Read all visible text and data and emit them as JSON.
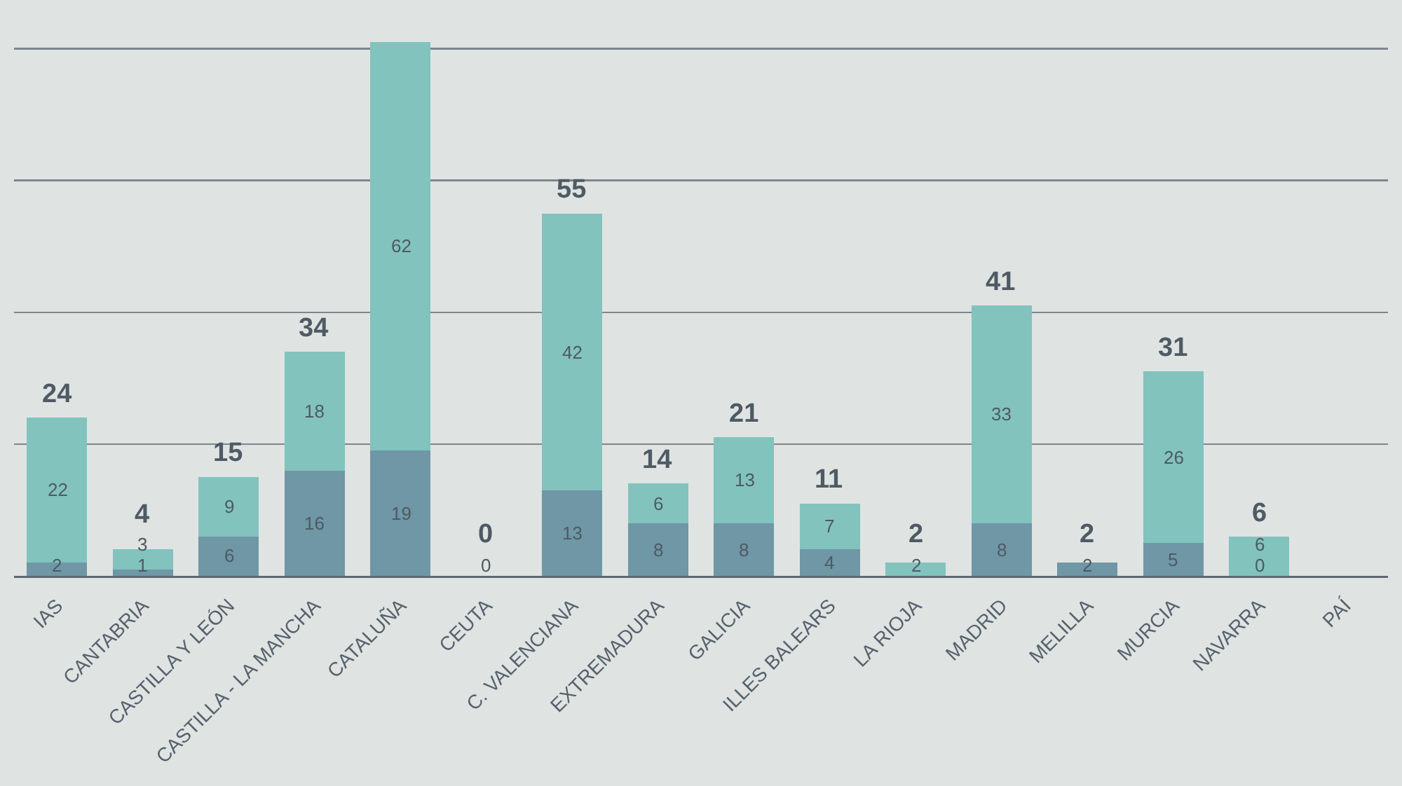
{
  "chart_data": {
    "type": "bar",
    "stacked": true,
    "categories": [
      "IAS",
      "CANTABRIA",
      "CASTILLA Y LEÓN",
      "CASTILLA - LA MANCHA",
      "CATALUÑA",
      "CEUTA",
      "C. VALENCIANA",
      "EXTREMADURA",
      "GALICIA",
      "ILLES BALEARS",
      "LA RIOJA",
      "MADRID",
      "MELILLA",
      "MURCIA",
      "NAVARRA",
      "PAÍ"
    ],
    "series": [
      {
        "color": "#6f97a6",
        "values": [
          2,
          1,
          6,
          16,
          19,
          0,
          13,
          8,
          8,
          4,
          0,
          8,
          2,
          5,
          0,
          null
        ],
        "value_labels": [
          "2",
          "1",
          "6",
          "16",
          "19",
          "0",
          "13",
          "8",
          "8",
          "4",
          null,
          "8",
          "2",
          "5",
          "0",
          null
        ]
      },
      {
        "color": "#82c3bd",
        "values": [
          22,
          3,
          9,
          18,
          62,
          0,
          42,
          6,
          13,
          7,
          2,
          33,
          0,
          26,
          6,
          null
        ],
        "value_labels": [
          "22",
          "3",
          "9",
          "18",
          "62",
          null,
          "42",
          "6",
          "13",
          "7",
          "2",
          "33",
          null,
          "26",
          "6",
          null
        ]
      }
    ],
    "totals": [
      "24",
      "4",
      "15",
      "34",
      null,
      "0",
      "55",
      "14",
      "21",
      "11",
      "2",
      "41",
      "2",
      "31",
      "6",
      null
    ],
    "yticks": [
      {
        "value": 0,
        "label": null
      },
      {
        "value": 20,
        "label": null
      },
      {
        "value": 40,
        "label": null
      },
      {
        "value": 60,
        "label": null
      },
      {
        "value": 80,
        "label": null
      }
    ],
    "grid": "y",
    "tick_labels": "x"
  }
}
